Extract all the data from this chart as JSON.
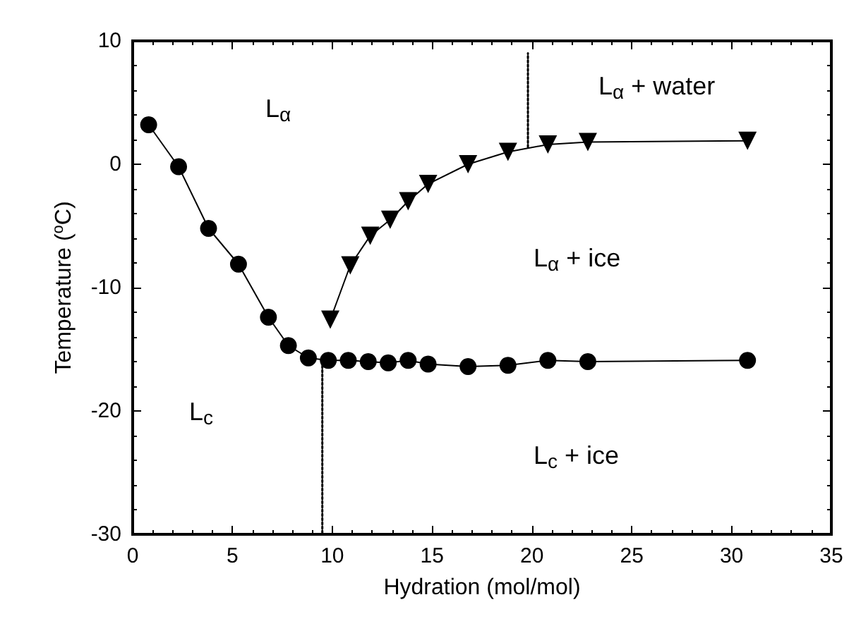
{
  "chart_data": {
    "type": "line",
    "xlabel": "Hydration (mol/mol)",
    "ylabel": "Temperature ($^{o}$C)",
    "xlim": [
      0,
      35
    ],
    "xticks": [
      0,
      5,
      10,
      15,
      20,
      25,
      30,
      35
    ],
    "ylim": [
      -30,
      10
    ],
    "yticks": [
      -30,
      -20,
      -10,
      0,
      10
    ],
    "grid": false,
    "series": [
      {
        "color": "#000000",
        "marker": "circle",
        "line_style": "solid",
        "x": [
          0.8,
          2.3,
          3.8,
          5.3,
          6.8,
          7.8,
          8.8,
          9.8,
          10.8,
          11.8,
          12.8,
          13.8,
          14.8,
          16.8,
          18.8,
          20.8,
          22.8,
          30.8
        ],
        "values": [
          3.2,
          -0.2,
          -5.2,
          -8.1,
          -12.4,
          -14.7,
          -15.7,
          -15.9,
          -15.9,
          -16.0,
          -16.1,
          -15.9,
          -16.2,
          -16.4,
          -16.3,
          -15.9,
          -16.0,
          -15.9
        ]
      },
      {
        "color": "#000000",
        "marker": "triangle",
        "line_style": "solid",
        "x": [
          9.9,
          10.9,
          11.9,
          12.9,
          13.8,
          14.8,
          16.8,
          18.8,
          20.8,
          22.8,
          30.8
        ],
        "values": [
          -12.6,
          -8.2,
          -5.8,
          -4.5,
          -3.0,
          -1.6,
          0.0,
          1.0,
          1.6,
          1.8,
          1.9
        ]
      },
      {
        "color": "#000000",
        "marker": "none",
        "line_style": "dotted",
        "x": [
          9.5,
          9.5
        ],
        "values": [
          -16,
          -30
        ]
      },
      {
        "color": "#000000",
        "marker": "none",
        "line_style": "dotted",
        "x": [
          19.8,
          19.8
        ],
        "values": [
          1.4,
          9
        ]
      }
    ],
    "annotations": [
      "L$_{α}$",
      "L$_{c}$",
      "L$_{α}$ + water",
      "L$_{α}$ + ice",
      "L$_{c}$ + ice"
    ]
  }
}
